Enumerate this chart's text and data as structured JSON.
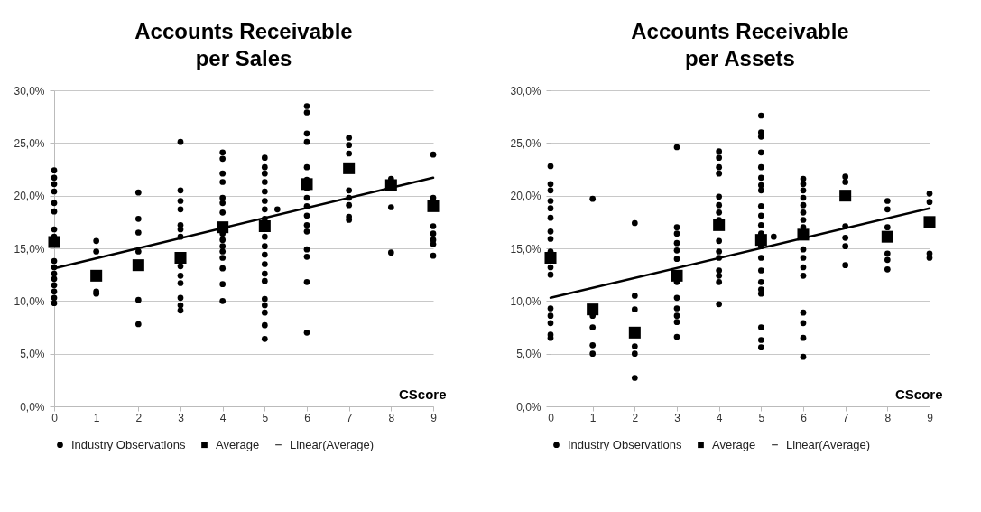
{
  "chart_data": [
    {
      "type": "scatter",
      "title": "Accounts Receivable per Sales",
      "xlabel": "CScore",
      "xlim": [
        0,
        9
      ],
      "xticks": [
        0,
        1,
        2,
        3,
        4,
        5,
        6,
        7,
        8,
        9
      ],
      "ylim": [
        0,
        30
      ],
      "yticks": [
        {
          "value": 0,
          "label": "0,0%"
        },
        {
          "value": 5,
          "label": "5,0%"
        },
        {
          "value": 10,
          "label": "10,0%"
        },
        {
          "value": 15,
          "label": "15,0%"
        },
        {
          "value": 20,
          "label": "20,0%"
        },
        {
          "value": 25,
          "label": "25,0%"
        },
        {
          "value": 30,
          "label": "30,0%"
        }
      ],
      "grid": "y",
      "legend": "bottom",
      "series": [
        {
          "name": "Industry Observations",
          "color": "#000000",
          "marker": "circle",
          "x": [
            0,
            0,
            0,
            0,
            0,
            0,
            0,
            0,
            0,
            0,
            0,
            0,
            0,
            0,
            0,
            0,
            1,
            1,
            1,
            1,
            2,
            2,
            2,
            2,
            2,
            2,
            3,
            3,
            3,
            3,
            3,
            3,
            3,
            3,
            3,
            3,
            3,
            3,
            3,
            4,
            4,
            4,
            4,
            4,
            4,
            4,
            4,
            4,
            4,
            4,
            4,
            4,
            4,
            4,
            5,
            5,
            5,
            5,
            5,
            5,
            5,
            5,
            5,
            5,
            5,
            5,
            5,
            5,
            5,
            5,
            5,
            5,
            5,
            5.3,
            6,
            6,
            6,
            6,
            6,
            6,
            6,
            6,
            6,
            6,
            6,
            6,
            6,
            6,
            6,
            6,
            7,
            7,
            7,
            7,
            7,
            7,
            7,
            7,
            8,
            8,
            8,
            9,
            9,
            9,
            9,
            9,
            9,
            9
          ],
          "values": [
            22.4,
            21.7,
            21.1,
            20.4,
            19.3,
            18.5,
            16.8,
            16.1,
            13.8,
            13.2,
            12.6,
            12.1,
            11.5,
            10.9,
            10.3,
            9.8,
            15.7,
            14.7,
            10.9,
            10.7,
            20.3,
            17.8,
            16.5,
            14.7,
            10.1,
            7.8,
            25.1,
            20.5,
            19.5,
            18.7,
            17.2,
            16.8,
            16.1,
            13.3,
            12.4,
            11.7,
            10.3,
            9.6,
            9.1,
            24.1,
            23.5,
            22.1,
            21.3,
            19.8,
            19.3,
            18.4,
            16.4,
            15.8,
            15.2,
            14.7,
            14.1,
            13.1,
            11.6,
            10.0,
            23.6,
            22.7,
            22.1,
            21.3,
            20.4,
            19.5,
            18.7,
            17.8,
            16.1,
            15.2,
            14.4,
            13.5,
            12.6,
            11.9,
            10.2,
            9.6,
            8.9,
            7.7,
            6.4,
            18.7,
            28.5,
            27.9,
            25.9,
            25.1,
            22.7,
            21.5,
            20.7,
            19.8,
            19.0,
            18.1,
            17.2,
            16.6,
            14.9,
            14.2,
            11.8,
            7.0,
            25.5,
            24.8,
            24.0,
            20.5,
            19.8,
            19.1,
            18.0,
            17.7,
            21.6,
            18.9,
            14.6,
            23.9,
            19.8,
            17.1,
            16.4,
            15.8,
            15.4,
            14.3
          ]
        },
        {
          "name": "Average",
          "color": "#000000",
          "marker": "square",
          "x": [
            0,
            1,
            2,
            3,
            4,
            5,
            6,
            7,
            8,
            9
          ],
          "values": [
            15.6,
            12.4,
            13.4,
            14.1,
            17.0,
            17.1,
            21.1,
            22.6,
            21.0,
            19.0
          ]
        },
        {
          "name": "Linear(Average)",
          "type": "line",
          "color": "#000000",
          "line_style": "solid",
          "x": [
            0,
            9
          ],
          "values": [
            13.1,
            21.7
          ]
        }
      ]
    },
    {
      "type": "scatter",
      "title": "Accounts Receivable per Assets",
      "xlabel": "CScore",
      "xlim": [
        0,
        9
      ],
      "xticks": [
        0,
        1,
        2,
        3,
        4,
        5,
        6,
        7,
        8,
        9
      ],
      "ylim": [
        0,
        30
      ],
      "yticks": [
        {
          "value": 0,
          "label": "0,0%"
        },
        {
          "value": 5,
          "label": "5,0%"
        },
        {
          "value": 10,
          "label": "10,0%"
        },
        {
          "value": 15,
          "label": "15,0%"
        },
        {
          "value": 20,
          "label": "20,0%"
        },
        {
          "value": 25,
          "label": "25,0%"
        },
        {
          "value": 30,
          "label": "30,0%"
        }
      ],
      "grid": "y",
      "legend": "bottom",
      "series": [
        {
          "name": "Industry Observations",
          "color": "#000000",
          "marker": "circle",
          "x": [
            0,
            0,
            0,
            0,
            0,
            0,
            0,
            0,
            0,
            0,
            0,
            0,
            0,
            0,
            0,
            0,
            1,
            1,
            1,
            1,
            1,
            2,
            2,
            2,
            2,
            2,
            2,
            3,
            3,
            3,
            3,
            3,
            3,
            3,
            3,
            3,
            3,
            3,
            3,
            4,
            4,
            4,
            4,
            4,
            4,
            4,
            4,
            4,
            4,
            4,
            4,
            4,
            4,
            4,
            5,
            5,
            5,
            5,
            5,
            5,
            5,
            5,
            5,
            5,
            5,
            5,
            5,
            5,
            5,
            5,
            5,
            5,
            5,
            5,
            5,
            5.3,
            6,
            6,
            6,
            6,
            6,
            6,
            6,
            6,
            6,
            6,
            6,
            6,
            6,
            6,
            6,
            6,
            7,
            7,
            7,
            7,
            7,
            7,
            8,
            8,
            8,
            8,
            8,
            8,
            9,
            9,
            9,
            9
          ],
          "values": [
            22.8,
            21.1,
            20.5,
            19.5,
            18.8,
            17.9,
            16.6,
            15.9,
            14.7,
            13.2,
            12.5,
            9.3,
            8.6,
            7.9,
            6.8,
            6.5,
            19.7,
            8.6,
            7.5,
            5.8,
            5.0,
            17.4,
            10.5,
            9.2,
            5.7,
            5.0,
            2.7,
            24.6,
            17.0,
            16.4,
            15.5,
            14.8,
            14.0,
            11.8,
            10.3,
            9.3,
            8.6,
            8.0,
            6.6,
            24.2,
            23.6,
            22.7,
            22.1,
            19.9,
            19.1,
            18.4,
            17.7,
            15.7,
            14.7,
            14.1,
            12.9,
            12.4,
            11.8,
            9.7,
            27.6,
            26.0,
            25.6,
            24.1,
            22.7,
            21.7,
            21.0,
            20.5,
            19.0,
            18.1,
            17.2,
            16.4,
            15.2,
            14.1,
            12.9,
            11.8,
            11.1,
            10.7,
            7.5,
            6.3,
            5.6,
            16.1,
            21.6,
            21.1,
            20.5,
            19.8,
            19.1,
            18.4,
            17.7,
            17.0,
            14.9,
            14.1,
            13.2,
            12.4,
            8.9,
            7.9,
            6.5,
            4.7,
            21.8,
            21.3,
            17.1,
            16.0,
            15.2,
            13.4,
            19.5,
            18.7,
            17.0,
            14.5,
            13.9,
            13.0,
            20.2,
            19.4,
            14.5,
            14.1
          ]
        },
        {
          "name": "Average",
          "color": "#000000",
          "marker": "square",
          "x": [
            0,
            1,
            2,
            3,
            4,
            5,
            6,
            7,
            8,
            9
          ],
          "values": [
            14.1,
            9.2,
            7.0,
            12.4,
            17.2,
            15.8,
            16.3,
            20.0,
            16.1,
            17.5
          ]
        },
        {
          "name": "Linear(Average)",
          "type": "line",
          "color": "#000000",
          "line_style": "solid",
          "x": [
            0,
            9
          ],
          "values": [
            10.3,
            18.8
          ]
        }
      ]
    }
  ]
}
